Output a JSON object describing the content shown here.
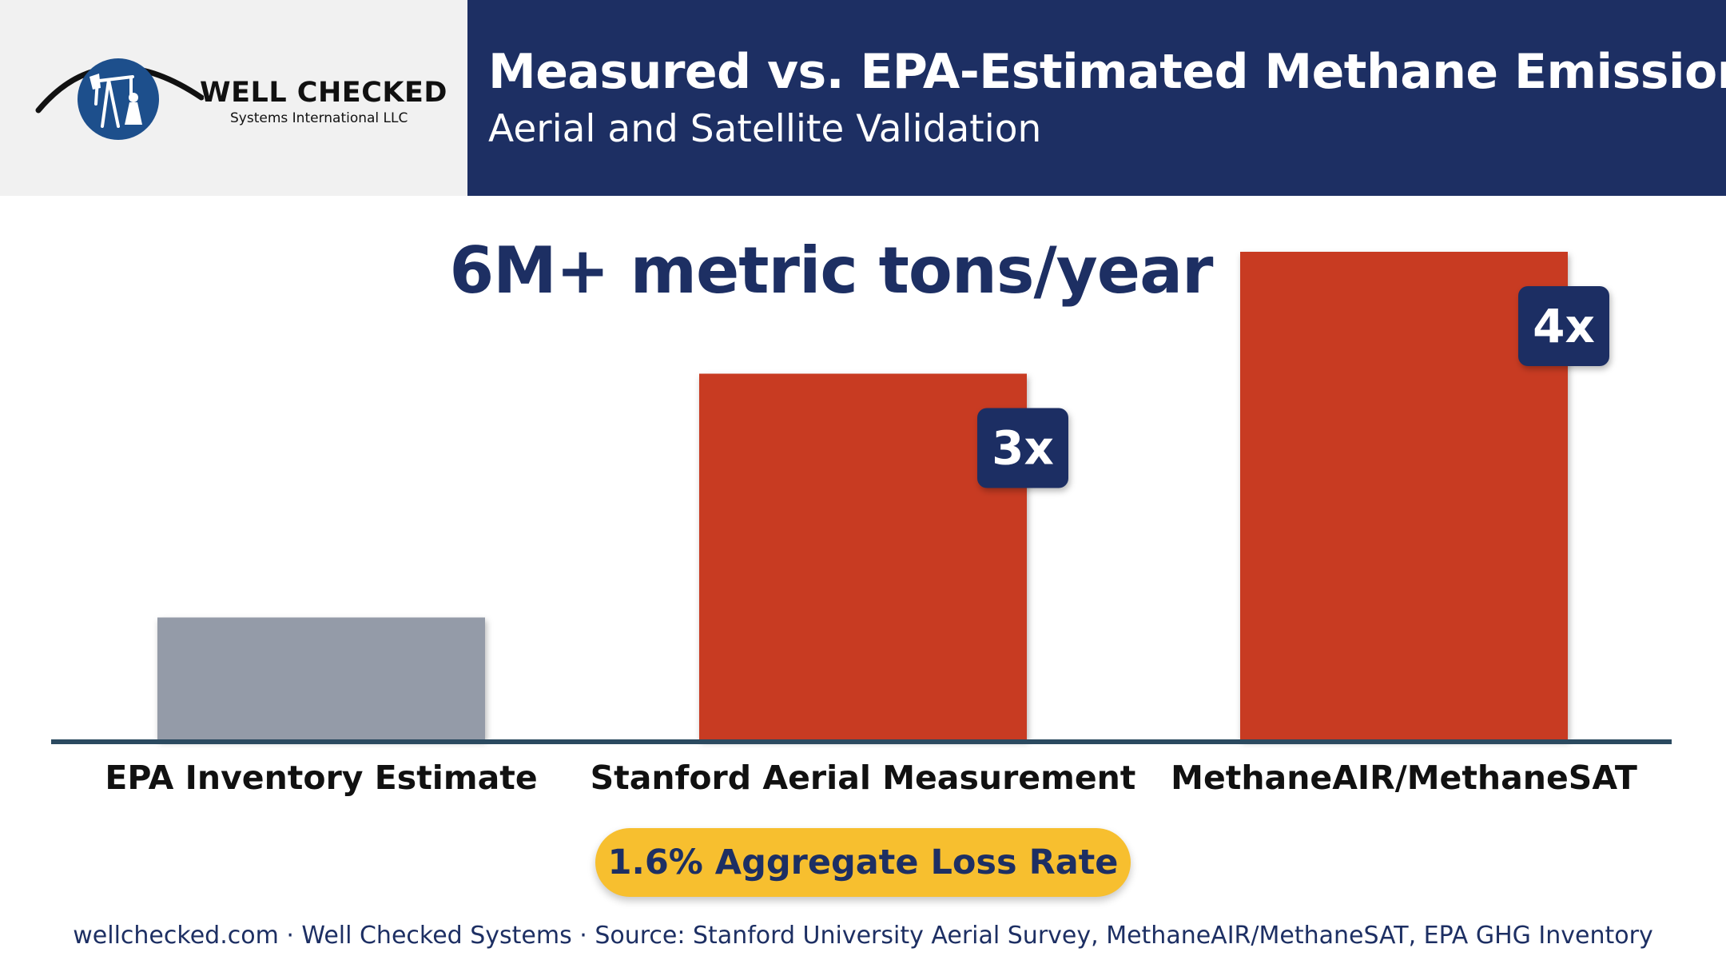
{
  "header": {
    "title": "Measured vs. EPA-Estimated Methane Emissions",
    "subtitle": "Aerial and Satellite Validation"
  },
  "logo": {
    "name": "WELL CHECKED",
    "subtitle": "Systems International LLC"
  },
  "headline": "6M+ metric tons/year",
  "chart_data": {
    "type": "bar",
    "categories": [
      "EPA Inventory Estimate",
      "Stanford Aerial Measurement",
      "MethaneAIR/MethaneSAT"
    ],
    "values": [
      1,
      3,
      4
    ],
    "data_labels": [
      "",
      "3x",
      "4x"
    ],
    "colors": [
      "#949ba8",
      "#c83a22",
      "#c83a22"
    ],
    "ylim": [
      0,
      4
    ],
    "xlabel": "",
    "ylabel": ""
  },
  "loss_rate": "1.6% Aggregate Loss Rate",
  "footer": "wellchecked.com · Well Checked Systems · Source: Stanford University Aerial Survey, MethaneAIR/MethaneSAT, EPA GHG Inventory",
  "colors": {
    "navy": "#1d2f63",
    "red": "#c83a22",
    "gray": "#949ba8",
    "gold": "#f7bf2f",
    "axis": "#2b4a60"
  }
}
